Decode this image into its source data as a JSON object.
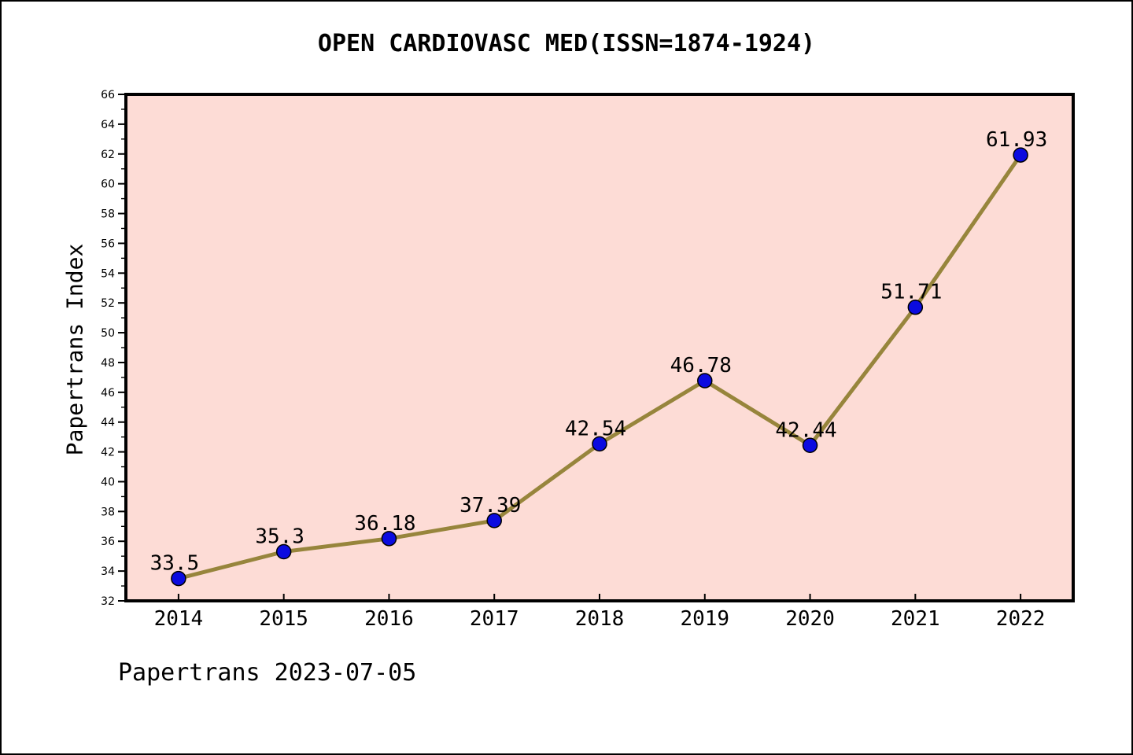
{
  "footer": {
    "text": "Papertrans 2023-07-05"
  },
  "chart_data": {
    "type": "line",
    "title": "OPEN CARDIOVASC MED(ISSN=1874-1924)",
    "xlabel": "",
    "ylabel": "Papertrans Index",
    "categories": [
      2014,
      2015,
      2016,
      2017,
      2018,
      2019,
      2020,
      2021,
      2022
    ],
    "values": [
      33.5,
      35.3,
      36.18,
      37.39,
      42.54,
      46.78,
      42.44,
      51.71,
      61.93
    ],
    "point_labels": [
      "33.5",
      "35.3",
      "36.18",
      "37.39",
      "42.54",
      "46.78",
      "42.44",
      "51.71",
      "61.93"
    ],
    "xlim": [
      2013.5,
      2022.5
    ],
    "ylim": [
      32,
      66
    ],
    "y_major_step": 2,
    "y_minor_step": 1,
    "grid": false,
    "legend_position": "none",
    "colors": {
      "plot_background": "#fddcd6",
      "line": "#97853c",
      "marker_fill": "#0b0be0",
      "marker_edge": "#000000",
      "axis": "#000000",
      "text": "#000000"
    }
  }
}
